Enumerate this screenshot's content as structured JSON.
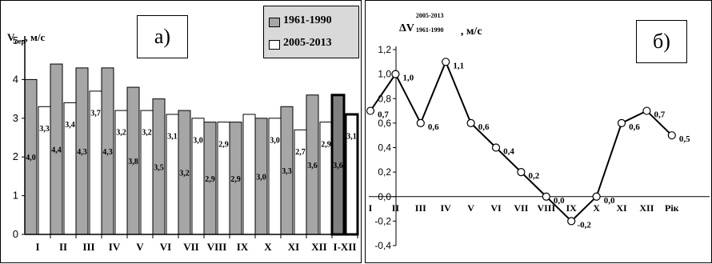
{
  "chart_data": [
    {
      "panel": "a)",
      "type": "bar",
      "ylabel_main": "V",
      "ylabel_sub": "сер",
      "ylabel_unit": ", м/с",
      "ylim": [
        0,
        5
      ],
      "yticks": [
        "0",
        "1",
        "2",
        "3",
        "4",
        "5"
      ],
      "categories": [
        "I",
        "II",
        "III",
        "IV",
        "V",
        "VI",
        "VII",
        "VIII",
        "IX",
        "X",
        "XI",
        "XII",
        "I-XII"
      ],
      "series": [
        {
          "name": "1961-1990",
          "color": "#a6a6a6",
          "values": [
            4.0,
            4.4,
            4.3,
            4.3,
            3.8,
            3.5,
            3.2,
            2.9,
            2.9,
            3.0,
            3.3,
            3.6,
            3.6
          ],
          "labels": [
            "4,0",
            "4,4",
            "4,3",
            "4,3",
            "3,8",
            "3,5",
            "3,2",
            "2,9",
            "2,9",
            "3,0",
            "3,3",
            "3,6",
            "3,6"
          ]
        },
        {
          "name": "2005-2013",
          "color": "#ffffff",
          "values": [
            3.3,
            3.4,
            3.7,
            3.2,
            3.2,
            3.1,
            3.0,
            2.9,
            3.1,
            3.0,
            2.7,
            2.9,
            3.1
          ],
          "labels": [
            "3,3",
            "3,4",
            "3,7",
            "3,2",
            "3,2",
            "3,1",
            "3,0",
            "2,9",
            "",
            "3,0",
            "2,7",
            "2,9",
            "3,1"
          ]
        }
      ],
      "legend_position": "top-right",
      "grid": false
    },
    {
      "panel": "б)",
      "type": "line",
      "ylabel_main": "ΔV",
      "ylabel_sup": "2005-2013",
      "ylabel_sub": "1961-1990",
      "ylabel_unit": ", м/с",
      "ylim": [
        -0.4,
        1.2
      ],
      "yticks": [
        "-0,4",
        "-0,2",
        "0,0",
        "0,2",
        "0,4",
        "0,6",
        "0,8",
        "1,0",
        "1,2"
      ],
      "categories": [
        "I",
        "II",
        "III",
        "IV",
        "V",
        "VI",
        "VII",
        "VIII",
        "IX",
        "X",
        "XI",
        "XII",
        "Рік"
      ],
      "series": [
        {
          "values": [
            0.7,
            1.0,
            0.6,
            1.1,
            0.6,
            0.4,
            0.2,
            0.0,
            -0.2,
            0.0,
            0.6,
            0.7,
            0.5
          ],
          "labels": [
            "0,7",
            "1,0",
            "0,6",
            "1,1",
            "0,6",
            "0,4",
            "0,2",
            "0,0",
            "-0,2",
            "0,0",
            "0,6",
            "0,7",
            "0,5"
          ]
        }
      ],
      "grid": false
    }
  ]
}
